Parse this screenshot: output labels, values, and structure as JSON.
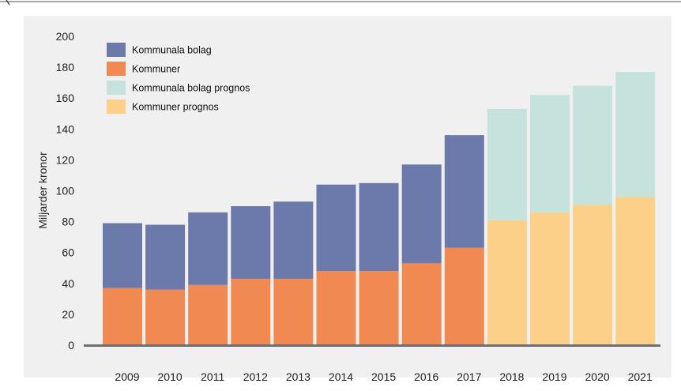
{
  "chart_data": {
    "type": "bar",
    "stacked": true,
    "title": "",
    "xlabel": "",
    "ylabel": "Miljarder kronor",
    "ylim": [
      0,
      200
    ],
    "yticks": [
      0,
      20,
      40,
      60,
      80,
      100,
      120,
      140,
      160,
      180,
      200
    ],
    "grid": false,
    "legend_position": "top-left",
    "categories": [
      "2009",
      "2010",
      "2011",
      "2012",
      "2013",
      "2014",
      "2015",
      "2016",
      "2017",
      "2018",
      "2019",
      "2020",
      "2021"
    ],
    "series": [
      {
        "name": "Kommuner",
        "color": "#f08a52",
        "values": [
          37,
          36,
          39,
          43,
          43,
          48,
          48,
          53,
          63,
          null,
          null,
          null,
          null
        ]
      },
      {
        "name": "Kommunala bolag",
        "color": "#6b7aaa",
        "values": [
          42,
          42,
          47,
          47,
          50,
          56,
          57,
          64,
          73,
          null,
          null,
          null,
          null
        ]
      },
      {
        "name": "Kommuner prognos",
        "color": "#fcd088",
        "values": [
          null,
          null,
          null,
          null,
          null,
          null,
          null,
          null,
          null,
          81,
          86,
          91,
          96
        ]
      },
      {
        "name": "Kommunala bolag prognos",
        "color": "#c5e2dd",
        "values": [
          null,
          null,
          null,
          null,
          null,
          null,
          null,
          null,
          null,
          72,
          76,
          77,
          81
        ]
      }
    ],
    "legend_order": [
      "Kommunala bolag",
      "Kommuner",
      "Kommunala bolag prognos",
      "Kommuner prognos"
    ]
  }
}
